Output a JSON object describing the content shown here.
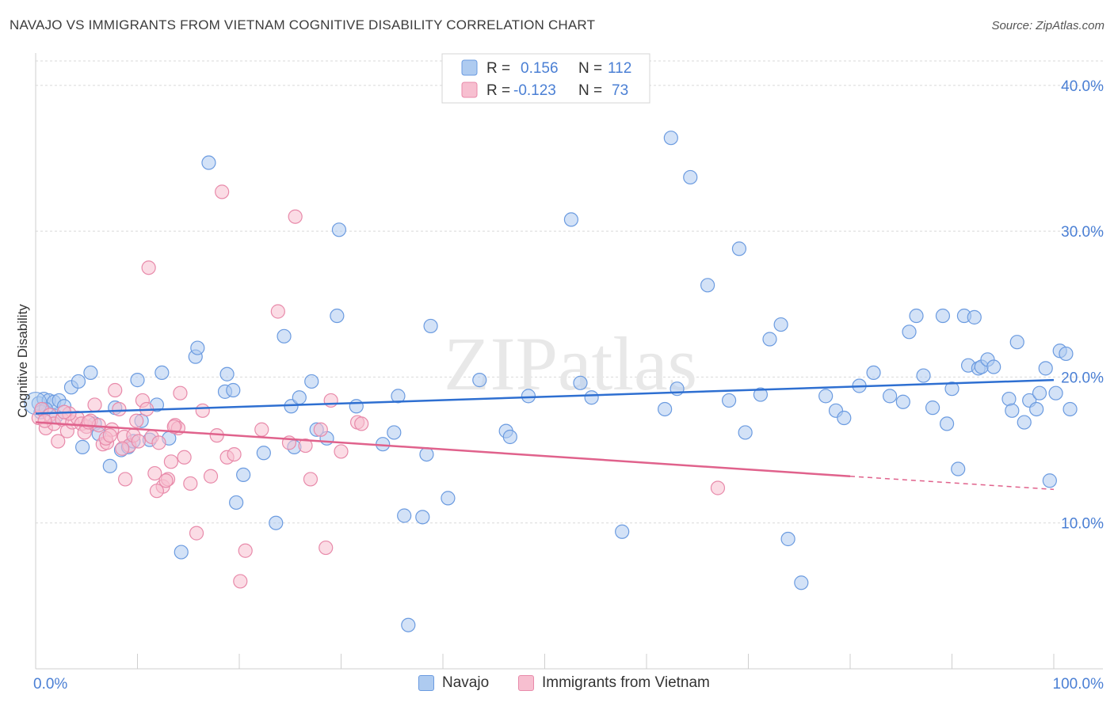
{
  "header": {
    "title": "NAVAJO VS IMMIGRANTS FROM VIETNAM COGNITIVE DISABILITY CORRELATION CHART",
    "source": "Source: ZipAtlas.com"
  },
  "watermark": "ZIPatlas",
  "colors": {
    "navajo_fill": "#aecbf0",
    "navajo_stroke": "#6b9be0",
    "navajo_line": "#2e6fd1",
    "vietnam_fill": "#f7bfd0",
    "vietnam_stroke": "#e88aaa",
    "vietnam_line": "#e0628c",
    "axis_text": "#4a7fd4",
    "grid": "#d9d9d9"
  },
  "legend_top": {
    "rows": [
      {
        "r_label": "R =",
        "r_value": "0.156",
        "n_label": "N =",
        "n_value": "112"
      },
      {
        "r_label": "R =",
        "r_value": "-0.123",
        "n_label": "N =",
        "n_value": "73"
      }
    ]
  },
  "legend_bottom": {
    "items": [
      {
        "label": "Navajo"
      },
      {
        "label": "Immigrants from Vietnam"
      }
    ]
  },
  "chart_data": {
    "type": "scatter",
    "title": "NAVAJO VS IMMIGRANTS FROM VIETNAM COGNITIVE DISABILITY CORRELATION CHART",
    "xlabel": "",
    "ylabel": "Cognitive Disability",
    "xlim": [
      0,
      100
    ],
    "ylim": [
      0,
      42
    ],
    "x_tick_labels": [
      "0.0%",
      "100.0%"
    ],
    "y_ticks": [
      10,
      20,
      30,
      40
    ],
    "y_tick_labels": [
      "10.0%",
      "20.0%",
      "30.0%",
      "40.0%"
    ],
    "grid": true,
    "legend_position": "top-center",
    "series": [
      {
        "name": "Navajo",
        "r": 0.156,
        "n": 112,
        "trend": {
          "x": [
            0,
            100
          ],
          "y": [
            17.5,
            19.8
          ]
        },
        "points": [
          [
            0.3,
            18.2
          ],
          [
            0.8,
            18.5
          ],
          [
            1.3,
            18.4
          ],
          [
            1.8,
            18.3
          ],
          [
            2.3,
            18.4
          ],
          [
            2.8,
            18.0
          ],
          [
            3.5,
            19.3
          ],
          [
            4.2,
            19.7
          ],
          [
            4.6,
            15.2
          ],
          [
            5.4,
            20.3
          ],
          [
            5.8,
            16.8
          ],
          [
            7.3,
            13.9
          ],
          [
            7.8,
            17.9
          ],
          [
            8.4,
            15.0
          ],
          [
            9.1,
            15.2
          ],
          [
            10.0,
            19.8
          ],
          [
            10.4,
            17.0
          ],
          [
            11.2,
            15.7
          ],
          [
            11.9,
            18.1
          ],
          [
            12.4,
            20.3
          ],
          [
            14.3,
            8.0
          ],
          [
            15.7,
            21.4
          ],
          [
            15.9,
            22.0
          ],
          [
            17.0,
            34.7
          ],
          [
            18.6,
            19.0
          ],
          [
            18.8,
            20.2
          ],
          [
            19.4,
            19.1
          ],
          [
            19.7,
            11.4
          ],
          [
            20.4,
            13.3
          ],
          [
            22.4,
            14.8
          ],
          [
            23.6,
            10.0
          ],
          [
            24.4,
            22.8
          ],
          [
            25.1,
            18.0
          ],
          [
            25.4,
            15.2
          ],
          [
            25.9,
            18.6
          ],
          [
            27.1,
            19.7
          ],
          [
            27.6,
            16.4
          ],
          [
            28.6,
            15.8
          ],
          [
            29.6,
            24.2
          ],
          [
            29.8,
            30.1
          ],
          [
            31.5,
            18.0
          ],
          [
            34.1,
            15.4
          ],
          [
            35.2,
            16.2
          ],
          [
            35.6,
            18.7
          ],
          [
            36.2,
            10.5
          ],
          [
            36.6,
            3.0
          ],
          [
            38.0,
            10.4
          ],
          [
            38.4,
            14.7
          ],
          [
            38.8,
            23.5
          ],
          [
            40.5,
            11.7
          ],
          [
            43.6,
            19.8
          ],
          [
            46.2,
            16.3
          ],
          [
            46.6,
            15.9
          ],
          [
            48.4,
            18.7
          ],
          [
            52.6,
            30.8
          ],
          [
            53.5,
            19.6
          ],
          [
            54.6,
            18.6
          ],
          [
            57.6,
            9.4
          ],
          [
            61.8,
            17.8
          ],
          [
            62.4,
            36.4
          ],
          [
            63.0,
            19.2
          ],
          [
            64.3,
            33.7
          ],
          [
            66.0,
            26.3
          ],
          [
            68.1,
            18.4
          ],
          [
            69.1,
            28.8
          ],
          [
            69.7,
            16.2
          ],
          [
            71.2,
            18.8
          ],
          [
            72.1,
            22.6
          ],
          [
            73.2,
            23.6
          ],
          [
            73.9,
            8.9
          ],
          [
            75.2,
            5.9
          ],
          [
            77.6,
            18.7
          ],
          [
            78.6,
            17.7
          ],
          [
            79.4,
            17.2
          ],
          [
            80.9,
            19.4
          ],
          [
            82.3,
            20.3
          ],
          [
            83.9,
            18.7
          ],
          [
            85.2,
            18.3
          ],
          [
            85.8,
            23.1
          ],
          [
            86.5,
            24.2
          ],
          [
            87.2,
            20.1
          ],
          [
            88.1,
            17.9
          ],
          [
            89.1,
            24.2
          ],
          [
            89.5,
            16.8
          ],
          [
            90.0,
            19.2
          ],
          [
            90.6,
            13.7
          ],
          [
            91.2,
            24.2
          ],
          [
            91.6,
            20.8
          ],
          [
            92.2,
            24.1
          ],
          [
            92.6,
            20.6
          ],
          [
            92.9,
            20.7
          ],
          [
            93.5,
            21.2
          ],
          [
            94.1,
            20.7
          ],
          [
            95.6,
            18.5
          ],
          [
            95.9,
            17.7
          ],
          [
            96.4,
            22.4
          ],
          [
            97.1,
            16.9
          ],
          [
            97.6,
            18.4
          ],
          [
            98.3,
            17.8
          ],
          [
            98.6,
            18.9
          ],
          [
            99.2,
            20.6
          ],
          [
            99.6,
            12.9
          ],
          [
            100.2,
            18.9
          ],
          [
            100.6,
            21.8
          ],
          [
            101.2,
            21.6
          ],
          [
            101.6,
            17.8
          ],
          [
            0.5,
            17.6
          ],
          [
            1.0,
            17.8
          ],
          [
            2.0,
            17.3
          ],
          [
            6.2,
            16.1
          ],
          [
            9.6,
            15.6
          ],
          [
            13.1,
            15.8
          ]
        ]
      },
      {
        "name": "Immigrants from Vietnam",
        "r": -0.123,
        "n": 73,
        "trend": {
          "x": [
            0,
            80
          ],
          "y": [
            16.9,
            13.2
          ]
        },
        "trend_dashed": {
          "x": [
            80,
            100
          ],
          "y": [
            13.2,
            12.3
          ]
        },
        "points": [
          [
            0.3,
            17.2
          ],
          [
            0.6,
            17.8
          ],
          [
            1.0,
            16.5
          ],
          [
            1.4,
            17.4
          ],
          [
            1.8,
            16.8
          ],
          [
            2.2,
            15.6
          ],
          [
            2.6,
            17.1
          ],
          [
            3.1,
            16.3
          ],
          [
            3.6,
            16.9
          ],
          [
            4.1,
            17.2
          ],
          [
            4.5,
            16.8
          ],
          [
            5.0,
            16.6
          ],
          [
            5.4,
            17.0
          ],
          [
            5.8,
            18.1
          ],
          [
            6.2,
            16.7
          ],
          [
            6.6,
            15.4
          ],
          [
            7.0,
            15.5
          ],
          [
            7.5,
            16.4
          ],
          [
            7.8,
            19.1
          ],
          [
            8.2,
            17.8
          ],
          [
            8.7,
            15.9
          ],
          [
            8.8,
            13.0
          ],
          [
            9.2,
            15.3
          ],
          [
            9.6,
            16.0
          ],
          [
            10.1,
            15.6
          ],
          [
            10.5,
            18.4
          ],
          [
            10.9,
            17.8
          ],
          [
            11.1,
            27.5
          ],
          [
            11.4,
            15.9
          ],
          [
            11.7,
            13.4
          ],
          [
            12.1,
            15.5
          ],
          [
            12.5,
            12.5
          ],
          [
            13.0,
            13.0
          ],
          [
            13.3,
            14.2
          ],
          [
            13.7,
            16.7
          ],
          [
            14.0,
            16.5
          ],
          [
            14.2,
            18.9
          ],
          [
            14.6,
            14.5
          ],
          [
            15.2,
            12.7
          ],
          [
            15.8,
            9.3
          ],
          [
            16.4,
            17.7
          ],
          [
            17.2,
            13.2
          ],
          [
            17.8,
            16.0
          ],
          [
            18.3,
            32.7
          ],
          [
            18.8,
            14.5
          ],
          [
            19.5,
            14.7
          ],
          [
            20.1,
            6.0
          ],
          [
            20.6,
            8.1
          ],
          [
            22.2,
            16.4
          ],
          [
            23.8,
            24.5
          ],
          [
            24.9,
            15.5
          ],
          [
            25.5,
            31.0
          ],
          [
            26.5,
            15.3
          ],
          [
            27.0,
            13.0
          ],
          [
            28.0,
            16.4
          ],
          [
            28.5,
            8.3
          ],
          [
            29.0,
            18.4
          ],
          [
            30.0,
            14.9
          ],
          [
            31.6,
            16.9
          ],
          [
            32.0,
            16.8
          ],
          [
            67.0,
            12.4
          ],
          [
            0.9,
            17.0
          ],
          [
            3.3,
            17.5
          ],
          [
            4.8,
            16.2
          ],
          [
            6.9,
            15.8
          ],
          [
            8.5,
            15.1
          ],
          [
            9.9,
            17.0
          ],
          [
            11.9,
            12.2
          ],
          [
            13.6,
            16.6
          ],
          [
            2.8,
            17.6
          ],
          [
            5.2,
            16.9
          ],
          [
            7.3,
            16.0
          ],
          [
            12.8,
            12.9
          ]
        ]
      }
    ]
  }
}
